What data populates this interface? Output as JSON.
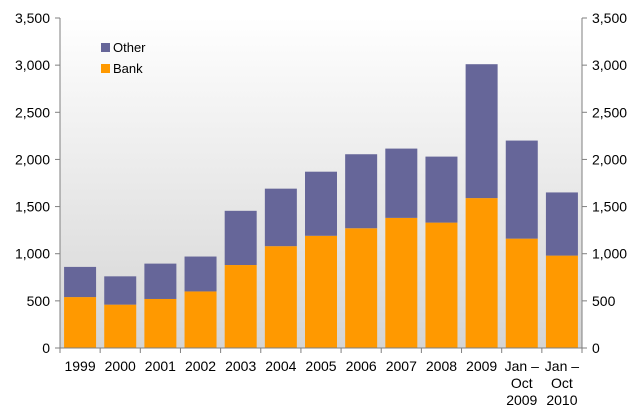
{
  "chart_data": {
    "type": "bar",
    "stacked": true,
    "categories": [
      [
        "1999"
      ],
      [
        "2000"
      ],
      [
        "2001"
      ],
      [
        "2002"
      ],
      [
        "2003"
      ],
      [
        "2004"
      ],
      [
        "2005"
      ],
      [
        "2006"
      ],
      [
        "2007"
      ],
      [
        "2008"
      ],
      [
        "2009"
      ],
      [
        "Jan –",
        "Oct",
        "2009"
      ],
      [
        "Jan –",
        "Oct",
        "2010"
      ]
    ],
    "series": [
      {
        "name": "Bank",
        "color": "#ff9900",
        "values": [
          540,
          460,
          520,
          600,
          880,
          1080,
          1190,
          1270,
          1380,
          1330,
          1590,
          1160,
          980
        ]
      },
      {
        "name": "Other",
        "color": "#666699",
        "values": [
          320,
          300,
          375,
          370,
          575,
          610,
          680,
          785,
          735,
          700,
          1420,
          1040,
          670
        ]
      }
    ],
    "legend": {
      "position": "top-left",
      "order": [
        "Other",
        "Bank"
      ]
    },
    "ylim": [
      0,
      3500
    ],
    "yticks": [
      "0",
      "500",
      "1,000",
      "1,500",
      "2,000",
      "2,500",
      "3,000",
      "3,500"
    ],
    "ytick_values": [
      0,
      500,
      1000,
      1500,
      2000,
      2500,
      3000,
      3500
    ],
    "secondary_yaxis": true,
    "grid": false,
    "background": "gradient-white-to-light-gray",
    "title": "",
    "xlabel": "",
    "ylabel": ""
  }
}
